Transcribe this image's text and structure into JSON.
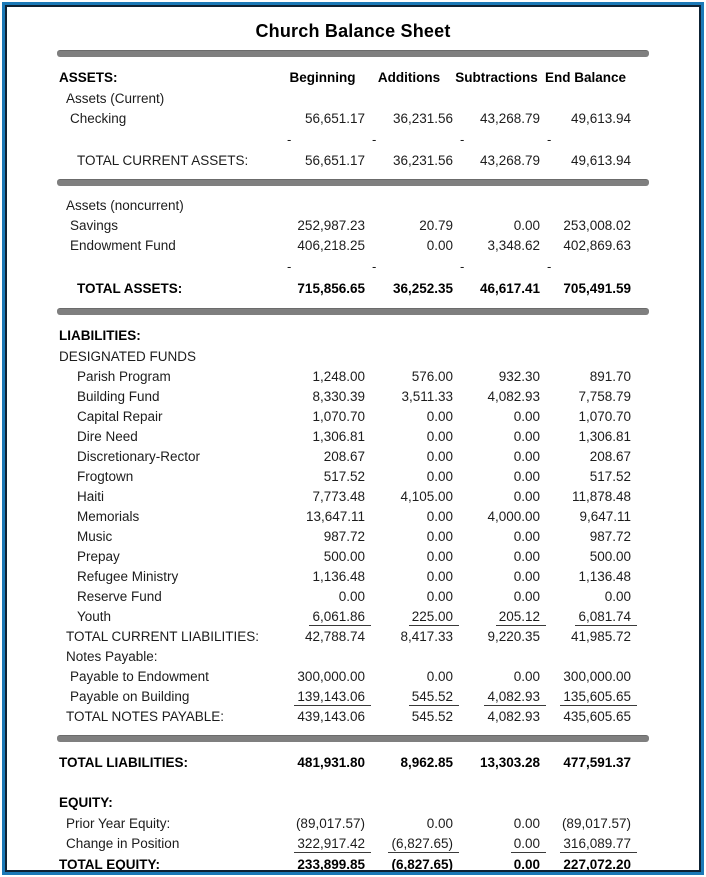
{
  "page": {
    "title": "Church Balance Sheet"
  },
  "colors": {
    "frame_blue": "#1b79b7",
    "frame_navy": "#0d2234",
    "rule_gray": "#7f7f7f",
    "text": "#1c1c1c"
  },
  "table": {
    "dash_char": "-",
    "header": {
      "label": "ASSETS:",
      "columns": [
        "Beginning",
        "Additions",
        "Subtractions",
        "End Balance"
      ]
    },
    "rows": [
      {
        "type": "subsection",
        "label": "Assets (Current)",
        "level": 1
      },
      {
        "type": "item",
        "label": "Checking",
        "level": 2,
        "values": [
          "56,651.17",
          "36,231.56",
          "43,268.79",
          "49,613.94"
        ]
      },
      {
        "type": "dashes"
      },
      {
        "type": "total",
        "label": "TOTAL CURRENT ASSETS:",
        "level": 3,
        "values": [
          "56,651.17",
          "36,231.56",
          "43,268.79",
          "49,613.94"
        ]
      },
      {
        "type": "rule"
      },
      {
        "type": "subsection",
        "label": "Assets (noncurrent)",
        "level": 1
      },
      {
        "type": "item",
        "label": "Savings",
        "level": 2,
        "values": [
          "252,987.23",
          "20.79",
          "0.00",
          "253,008.02"
        ]
      },
      {
        "type": "item",
        "label": "Endowment Fund",
        "level": 2,
        "values": [
          "406,218.25",
          "0.00",
          "3,348.62",
          "402,869.63"
        ]
      },
      {
        "type": "dashes"
      },
      {
        "type": "total_bold",
        "label": "TOTAL ASSETS:",
        "level": 3,
        "values": [
          "715,856.65",
          "36,252.35",
          "46,617.41",
          "705,491.59"
        ]
      },
      {
        "type": "rule"
      },
      {
        "type": "section",
        "label": "LIABILITIES:",
        "level": 0
      },
      {
        "type": "subsection",
        "label": "DESIGNATED FUNDS",
        "level": 0
      },
      {
        "type": "item",
        "label": "Parish Program",
        "level": 3,
        "values": [
          "1,248.00",
          "576.00",
          "932.30",
          "891.70"
        ]
      },
      {
        "type": "item",
        "label": "Building Fund",
        "level": 3,
        "values": [
          "8,330.39",
          "3,511.33",
          "4,082.93",
          "7,758.79"
        ]
      },
      {
        "type": "item",
        "label": "Capital Repair",
        "level": 3,
        "values": [
          "1,070.70",
          "0.00",
          "0.00",
          "1,070.70"
        ]
      },
      {
        "type": "item",
        "label": "Dire Need",
        "level": 3,
        "values": [
          "1,306.81",
          "0.00",
          "0.00",
          "1,306.81"
        ]
      },
      {
        "type": "item",
        "label": "Discretionary-Rector",
        "level": 3,
        "values": [
          "208.67",
          "0.00",
          "0.00",
          "208.67"
        ]
      },
      {
        "type": "item",
        "label": "Frogtown",
        "level": 3,
        "values": [
          "517.52",
          "0.00",
          "0.00",
          "517.52"
        ]
      },
      {
        "type": "item",
        "label": "Haiti",
        "level": 3,
        "values": [
          "7,773.48",
          "4,105.00",
          "0.00",
          "11,878.48"
        ]
      },
      {
        "type": "item",
        "label": "Memorials",
        "level": 3,
        "values": [
          "13,647.11",
          "0.00",
          "4,000.00",
          "9,647.11"
        ]
      },
      {
        "type": "item",
        "label": "Music",
        "level": 3,
        "values": [
          "987.72",
          "0.00",
          "0.00",
          "987.72"
        ]
      },
      {
        "type": "item",
        "label": "Prepay",
        "level": 3,
        "values": [
          "500.00",
          "0.00",
          "0.00",
          "500.00"
        ]
      },
      {
        "type": "item",
        "label": "Refugee Ministry",
        "level": 3,
        "values": [
          "1,136.48",
          "0.00",
          "0.00",
          "1,136.48"
        ]
      },
      {
        "type": "item",
        "label": "Reserve Fund",
        "level": 3,
        "values": [
          "0.00",
          "0.00",
          "0.00",
          "0.00"
        ]
      },
      {
        "type": "item",
        "label": "Youth",
        "level": 3,
        "underline": true,
        "values": [
          "6,061.86",
          "225.00",
          "205.12",
          "6,081.74"
        ]
      },
      {
        "type": "total",
        "label": "TOTAL CURRENT LIABILITIES:",
        "level": 1,
        "values": [
          "42,788.74",
          "8,417.33",
          "9,220.35",
          "41,985.72"
        ]
      },
      {
        "type": "subsection",
        "label": "Notes Payable:",
        "level": 1
      },
      {
        "type": "item",
        "label": "Payable to Endowment",
        "level": 2,
        "values": [
          "300,000.00",
          "0.00",
          "0.00",
          "300,000.00"
        ]
      },
      {
        "type": "item",
        "label": "Payable on Building",
        "level": 2,
        "underline": true,
        "values": [
          "139,143.06",
          "545.52",
          "4,082.93",
          "135,605.65"
        ]
      },
      {
        "type": "total",
        "label": "TOTAL NOTES PAYABLE:",
        "level": 1,
        "values": [
          "439,143.06",
          "545.52",
          "4,082.93",
          "435,605.65"
        ]
      },
      {
        "type": "rule"
      },
      {
        "type": "total_bold",
        "label": "TOTAL LIABILITIES:",
        "level": 0,
        "values": [
          "481,931.80",
          "8,962.85",
          "13,303.28",
          "477,591.37"
        ]
      },
      {
        "type": "spacer"
      },
      {
        "type": "section",
        "label": "EQUITY:",
        "level": 0
      },
      {
        "type": "item",
        "label": "Prior Year Equity:",
        "level": 1,
        "values": [
          "(89,017.57)",
          "0.00",
          "0.00",
          "(89,017.57)"
        ]
      },
      {
        "type": "item",
        "label": "Change in Position",
        "level": 1,
        "underline": true,
        "values": [
          "322,917.42",
          "(6,827.65)",
          "0.00",
          "316,089.77"
        ]
      },
      {
        "type": "total_bold",
        "label": "TOTAL EQUITY:",
        "level": 0,
        "values": [
          "233,899.85",
          "(6,827.65)",
          "0.00",
          "227,072.20"
        ]
      }
    ]
  }
}
